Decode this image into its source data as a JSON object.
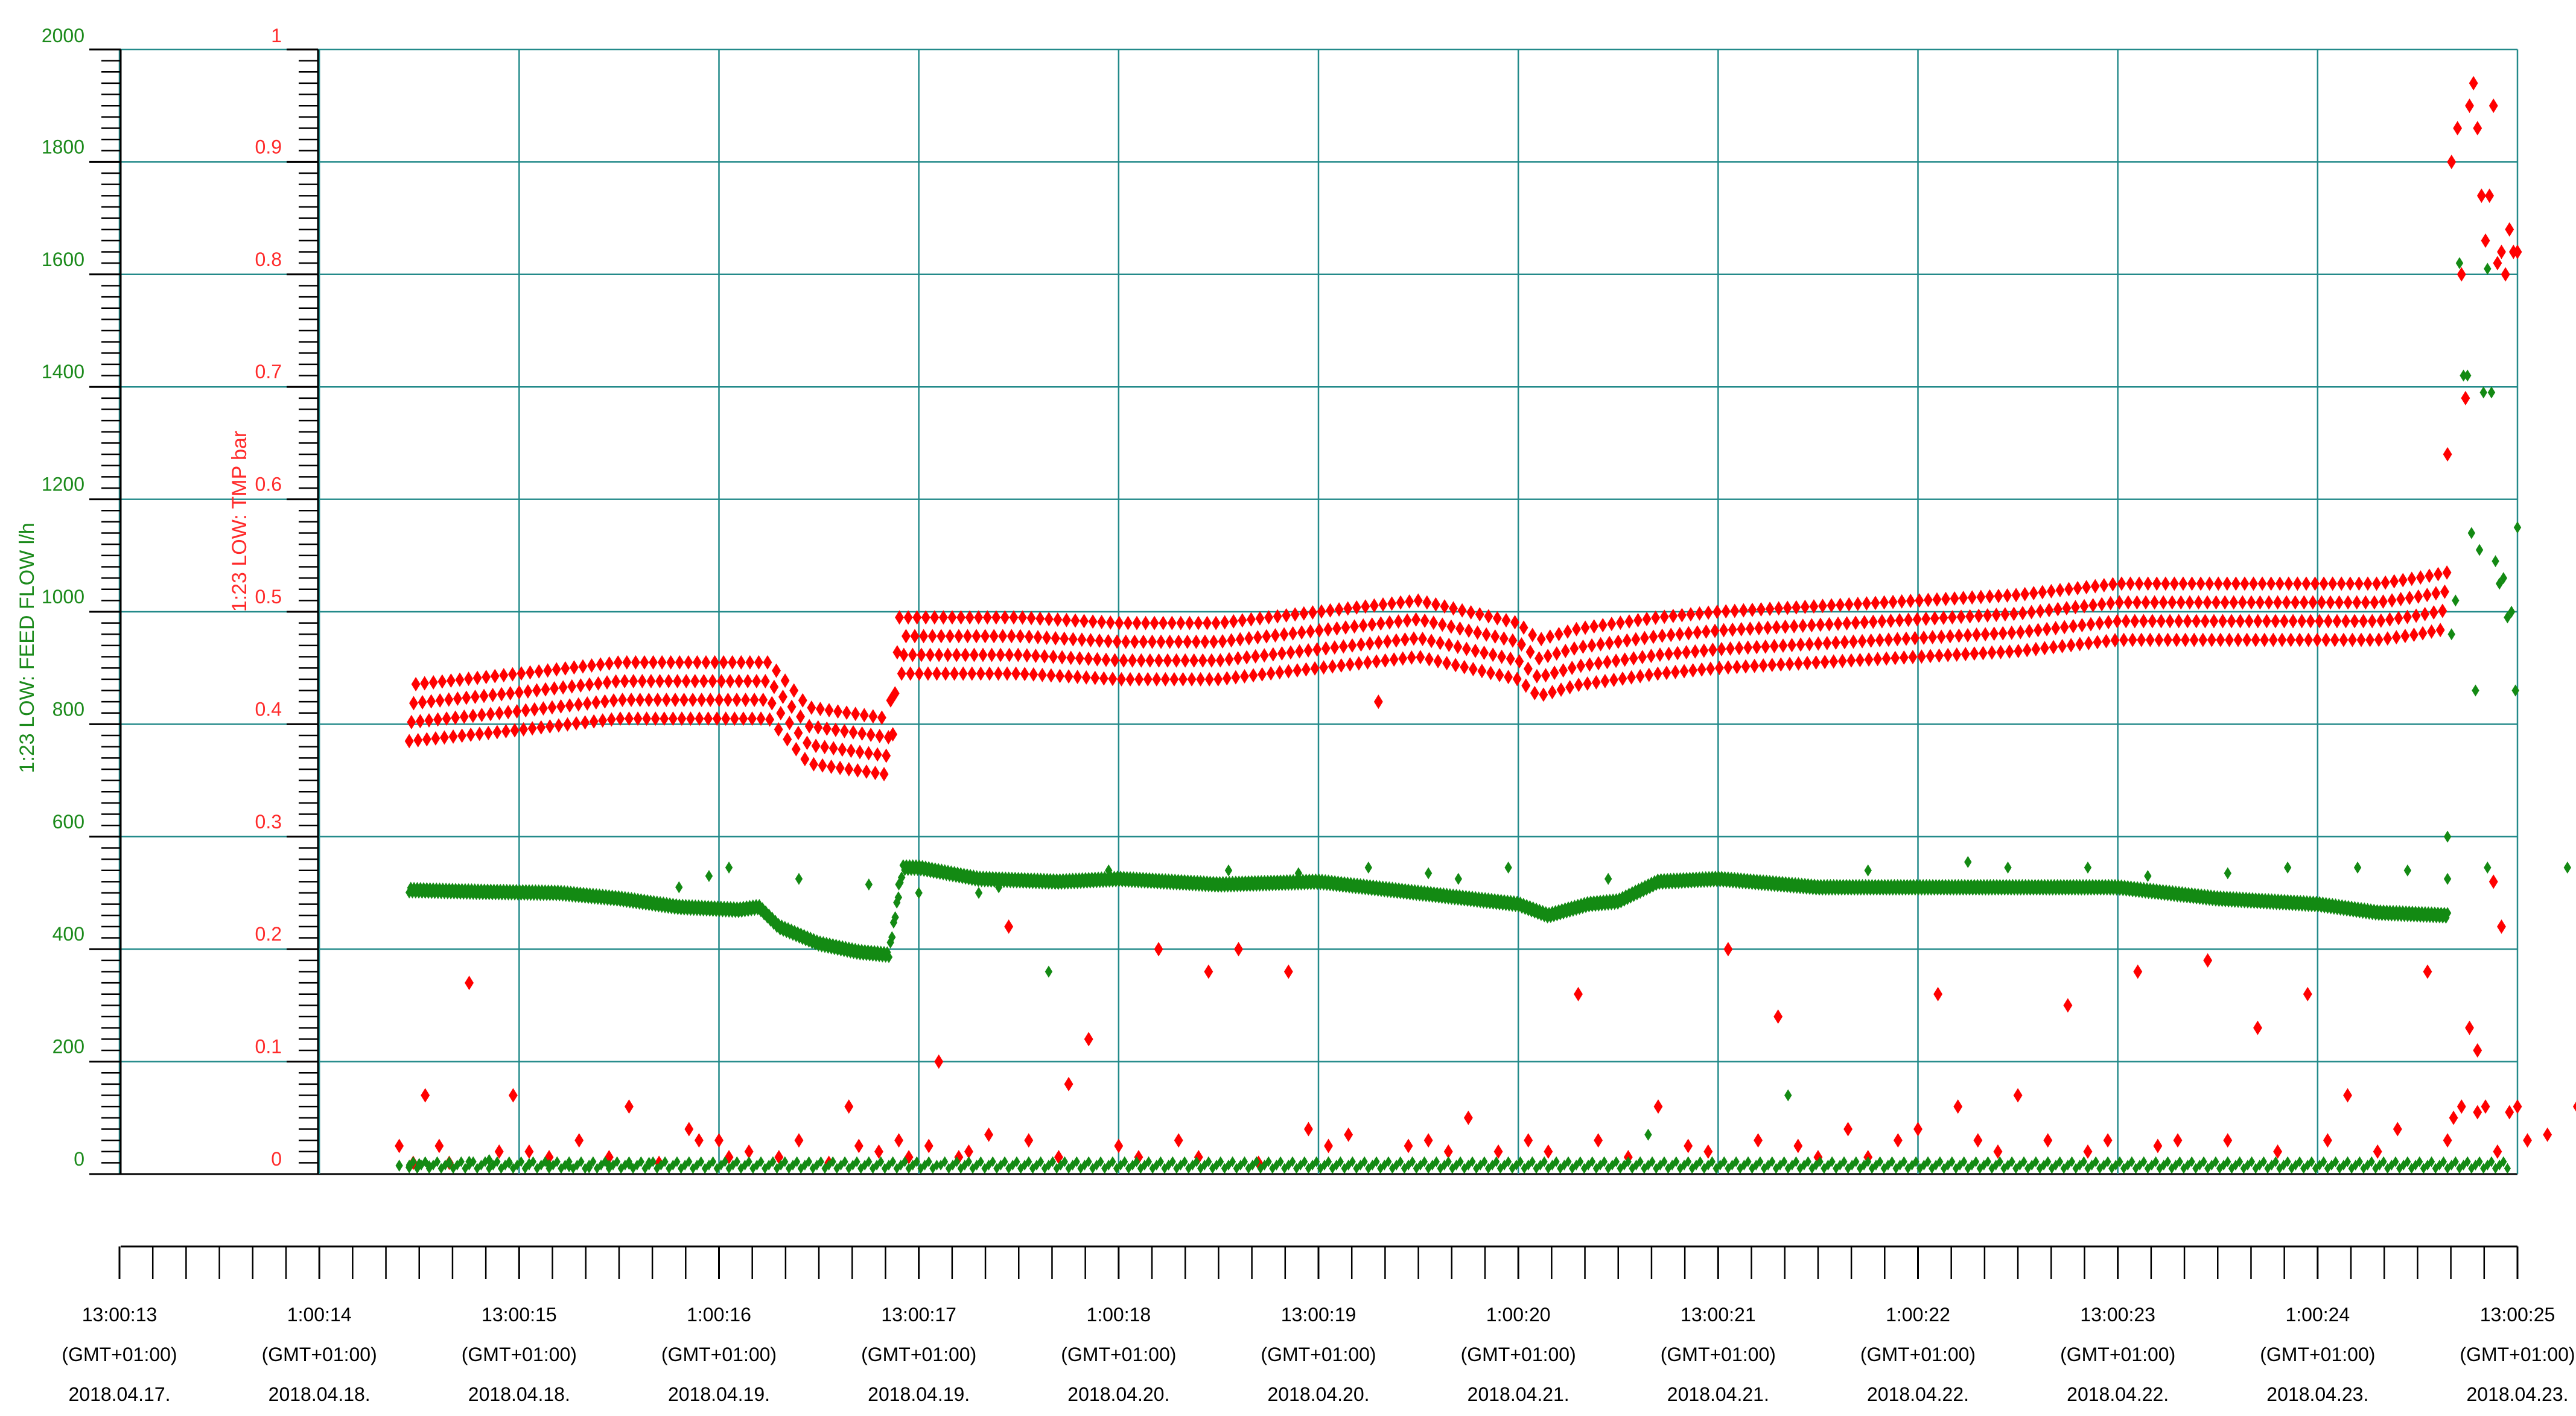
{
  "chart_data": {
    "type": "scatter",
    "x_axis": {
      "min": 0,
      "max": 12,
      "tick_labels": [
        [
          "13:00:13",
          "(GMT+01:00)",
          "2018.04.17."
        ],
        [
          "1:00:14",
          "(GMT+01:00)",
          "2018.04.18."
        ],
        [
          "13:00:15",
          "(GMT+01:00)",
          "2018.04.18."
        ],
        [
          "1:00:16",
          "(GMT+01:00)",
          "2018.04.19."
        ],
        [
          "13:00:17",
          "(GMT+01:00)",
          "2018.04.19."
        ],
        [
          "1:00:18",
          "(GMT+01:00)",
          "2018.04.20."
        ],
        [
          "13:00:19",
          "(GMT+01:00)",
          "2018.04.20."
        ],
        [
          "1:00:20",
          "(GMT+01:00)",
          "2018.04.21."
        ],
        [
          "13:00:21",
          "(GMT+01:00)",
          "2018.04.21."
        ],
        [
          "1:00:22",
          "(GMT+01:00)",
          "2018.04.22."
        ],
        [
          "13:00:23",
          "(GMT+01:00)",
          "2018.04.22."
        ],
        [
          "1:00:24",
          "(GMT+01:00)",
          "2018.04.23."
        ],
        [
          "13:00:25",
          "(GMT+01:00)",
          "2018.04.23."
        ]
      ]
    },
    "y_axes": [
      {
        "label": "1:23 LOW: FEED FLOW l/h",
        "color": "#1b8a1b",
        "min": 0,
        "max": 2000,
        "tick_labels": [
          "0",
          "200",
          "400",
          "600",
          "800",
          "1000",
          "1200",
          "1400",
          "1600",
          "1800",
          "2000"
        ]
      },
      {
        "label": "1:23 LOW: TMP bar",
        "color": "#ff2a2a",
        "min": 0,
        "max": 1,
        "tick_labels": [
          "0",
          "0.1",
          "0.2",
          "0.3",
          "0.4",
          "0.5",
          "0.6",
          "0.7",
          "0.8",
          "0.9",
          "1"
        ]
      }
    ],
    "grid": true,
    "series": [
      {
        "name": "1:23 LOW: TMP bar",
        "axis": 1,
        "color": "#ff0000",
        "marker": "diamond",
        "band_x": [
          1.45,
          2.0,
          2.5,
          3.0,
          3.25,
          3.35,
          3.45,
          3.85,
          3.9,
          4.0,
          4.5,
          5.0,
          5.5,
          6.0,
          6.5,
          7.0,
          7.1,
          7.3,
          7.7,
          8.0,
          8.5,
          9.0,
          9.5,
          10.0,
          10.5,
          11.0,
          11.3,
          11.5,
          11.65
        ],
        "band_y": [
          0.41,
          0.42,
          0.43,
          0.43,
          0.43,
          0.41,
          0.39,
          0.38,
          0.47,
          0.47,
          0.47,
          0.465,
          0.465,
          0.475,
          0.485,
          0.465,
          0.45,
          0.46,
          0.47,
          0.475,
          0.48,
          0.485,
          0.49,
          0.5,
          0.5,
          0.5,
          0.5,
          0.505,
          0.51
        ],
        "band_spread": 0.05,
        "spike_x": [
          11.65,
          11.67,
          11.7,
          11.72,
          11.74,
          11.76,
          11.78,
          11.8,
          11.82,
          11.84,
          11.86,
          11.88,
          11.9,
          11.92,
          11.94,
          11.96,
          11.98,
          12.0
        ],
        "spike_y": [
          0.64,
          0.9,
          0.93,
          0.8,
          0.69,
          0.95,
          0.97,
          0.93,
          0.87,
          0.83,
          0.87,
          0.95,
          0.81,
          0.82,
          0.8,
          0.84,
          0.82,
          0.82
        ],
        "outliers_x": [
          0.05,
          0.12,
          0.18,
          0.25,
          0.3,
          0.4,
          0.55,
          0.62,
          0.7,
          0.8,
          0.95,
          1.1,
          1.2,
          1.35,
          1.5,
          1.55,
          1.65,
          1.7,
          1.8,
          1.95,
          2.05,
          2.2,
          2.3,
          2.35,
          2.45,
          2.55,
          2.6,
          2.7,
          2.75,
          2.85,
          2.9,
          3.0,
          3.1,
          3.2,
          3.35,
          3.4,
          3.5,
          3.65,
          3.75,
          3.85,
          3.95,
          4.05,
          4.1,
          4.25,
          4.35,
          4.5,
          4.6,
          4.7,
          4.8,
          4.95,
          5.1,
          5.2,
          5.3,
          5.4,
          5.55,
          5.7,
          5.8,
          5.95,
          6.05,
          6.2,
          6.35,
          6.5,
          6.6,
          6.7,
          6.85,
          6.95,
          7.05,
          7.15,
          7.3,
          7.4,
          7.55,
          7.65,
          7.75,
          7.85,
          7.95,
          8.05,
          8.15,
          8.3,
          8.4,
          8.5,
          8.6,
          8.75,
          8.85,
          8.95,
          9.1,
          9.2,
          9.35,
          9.45,
          9.6,
          9.7,
          9.8,
          9.95,
          10.05,
          10.2,
          10.3,
          10.45,
          10.55,
          10.7,
          10.8,
          10.95,
          11.05,
          11.2,
          11.3,
          11.4,
          11.55
        ],
        "outliers_y": [
          0.025,
          0.01,
          0.07,
          0.025,
          0.01,
          0.17,
          0.02,
          0.07,
          0.02,
          0.015,
          0.03,
          0.015,
          0.06,
          0.01,
          0.04,
          0.03,
          0.03,
          0.015,
          0.02,
          0.015,
          0.03,
          0.01,
          0.06,
          0.025,
          0.02,
          0.03,
          0.015,
          0.025,
          0.1,
          0.015,
          0.02,
          0.035,
          0.22,
          0.03,
          0.015,
          0.08,
          0.12,
          0.025,
          0.015,
          0.2,
          0.03,
          0.015,
          0.18,
          0.2,
          0.01,
          0.18,
          0.04,
          0.025,
          0.035,
          0.42,
          0.025,
          0.03,
          0.02,
          0.05,
          0.02,
          0.03,
          0.02,
          0.16,
          0.03,
          0.015,
          0.06,
          0.025,
          0.02,
          0.2,
          0.03,
          0.14,
          0.025,
          0.015,
          0.04,
          0.015,
          0.03,
          0.04,
          0.16,
          0.06,
          0.03,
          0.02,
          0.07,
          0.03,
          0.15,
          0.02,
          0.03,
          0.18,
          0.025,
          0.03,
          0.19,
          0.03,
          0.13,
          0.02,
          0.16,
          0.03,
          0.07,
          0.02,
          0.04,
          0.18,
          0.03,
          0.11,
          0.02,
          0.03,
          0.035,
          0.06,
          0.02,
          0.03,
          0.07,
          0.17,
          0.03
        ],
        "tail_x": [
          11.68,
          11.72,
          11.76,
          11.8,
          11.84,
          11.88,
          11.92,
          11.96,
          12.0
        ],
        "tail_y": [
          0.05,
          0.06,
          0.13,
          0.055,
          0.06,
          0.26,
          0.22,
          0.055,
          0.06
        ]
      },
      {
        "name": "1:23 LOW: FEED FLOW l/h",
        "axis": 0,
        "color": "#138a13",
        "marker": "diamond",
        "band_x": [
          1.45,
          1.8,
          2.2,
          2.5,
          2.8,
          3.1,
          3.2,
          3.3,
          3.5,
          3.7,
          3.85,
          3.92,
          4.0,
          4.3,
          4.7,
          5.0,
          5.5,
          6.0,
          6.5,
          7.0,
          7.15,
          7.35,
          7.5,
          7.7,
          8.0,
          8.5,
          9.0,
          9.5,
          10.0,
          10.5,
          11.0,
          11.2,
          11.3,
          11.65
        ],
        "band_y": [
          505,
          502,
          500,
          490,
          475,
          470,
          475,
          440,
          410,
          395,
          390,
          545,
          545,
          525,
          520,
          525,
          515,
          520,
          500,
          480,
          460,
          480,
          485,
          520,
          525,
          510,
          510,
          510,
          510,
          490,
          480,
          470,
          465,
          460
        ],
        "band_spread": 14,
        "spike_x": [
          11.65,
          11.67,
          11.69,
          11.71,
          11.73,
          11.75,
          11.77,
          11.79,
          11.81,
          11.83,
          11.85,
          11.87,
          11.89,
          11.91,
          11.93,
          11.95,
          11.97,
          11.99,
          12.0
        ],
        "spike_y": [
          600,
          960,
          1020,
          1620,
          1420,
          1420,
          1140,
          860,
          1110,
          1390,
          1610,
          1390,
          1090,
          1050,
          1060,
          990,
          1000,
          860,
          1150
        ],
        "outliers_x": [
          0.05,
          0.1,
          0.15,
          0.2,
          0.3,
          0.4,
          0.5,
          0.6,
          0.7,
          0.8,
          0.9,
          1.0,
          1.1,
          1.2,
          1.3,
          1.45,
          1.6,
          1.7,
          2.05,
          2.4,
          2.55,
          2.65,
          2.95,
          3.05,
          3.3,
          3.6,
          4.2,
          4.55,
          4.9,
          5.2,
          5.35,
          5.6,
          6.1,
          6.3,
          6.7,
          7.0,
          7.4,
          7.9,
          8.1,
          8.5,
          8.8,
          9.2,
          9.5,
          9.85,
          10.1,
          10.3,
          10.5,
          10.9,
          11.1
        ],
        "outliers_y": [
          15,
          12,
          18,
          14,
          20,
          22,
          25,
          20,
          18,
          16,
          14,
          12,
          15,
          18,
          20,
          510,
          530,
          545,
          525,
          515,
          515,
          500,
          500,
          510,
          360,
          540,
          540,
          535,
          545,
          535,
          525,
          545,
          525,
          70,
          525,
          140,
          540,
          555,
          545,
          545,
          530,
          535,
          545,
          545,
          540,
          525,
          545,
          545,
          530
        ]
      }
    ]
  }
}
